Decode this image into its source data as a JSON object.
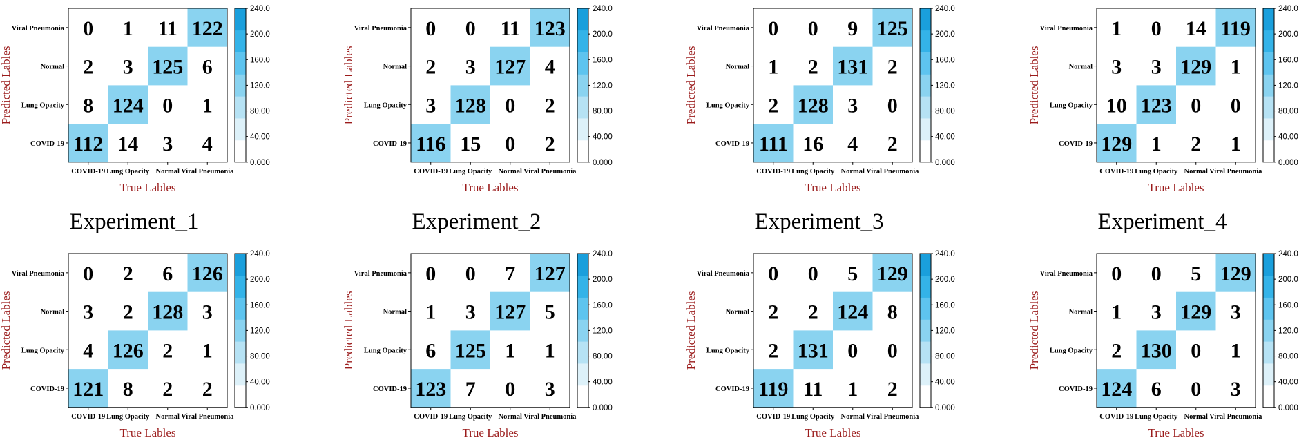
{
  "chart_data": {
    "type": "heatmap",
    "classes": [
      "COVID-19",
      "Lung Opacity",
      "Normal",
      "Viral Pneumonia"
    ],
    "y_tick_labels": [
      "Viral Pneumonia",
      "Normal",
      "Lung Opacity",
      "COVID-19"
    ],
    "xlabel": "True Lables",
    "ylabel": "Predicted Lables",
    "colorbar": {
      "range": [
        0,
        240
      ],
      "ticks": [
        "240.0",
        "200.0",
        "160.0",
        "120.0",
        "80.00",
        "40.00",
        "0.000"
      ],
      "bin_colors": [
        "#ffffff",
        "#ddf1f9",
        "#b6e2f4",
        "#8ad3f0",
        "#5ec4ef",
        "#34b3e8",
        "#1a9fdc"
      ]
    },
    "matrices": [
      {
        "title": "Experiment_1",
        "rows": [
          [
            0,
            1,
            11,
            122
          ],
          [
            2,
            3,
            125,
            6
          ],
          [
            8,
            124,
            0,
            1
          ],
          [
            112,
            14,
            3,
            4
          ]
        ]
      },
      {
        "title": "Experiment_2",
        "rows": [
          [
            0,
            0,
            11,
            123
          ],
          [
            2,
            3,
            127,
            4
          ],
          [
            3,
            128,
            0,
            2
          ],
          [
            116,
            15,
            0,
            2
          ]
        ]
      },
      {
        "title": "Experiment_3",
        "rows": [
          [
            0,
            0,
            9,
            125
          ],
          [
            1,
            2,
            131,
            2
          ],
          [
            2,
            128,
            3,
            0
          ],
          [
            111,
            16,
            4,
            2
          ]
        ]
      },
      {
        "title": "Experiment_4",
        "rows": [
          [
            1,
            0,
            14,
            119
          ],
          [
            3,
            3,
            129,
            1
          ],
          [
            10,
            123,
            0,
            0
          ],
          [
            129,
            1,
            2,
            1
          ]
        ]
      },
      {
        "title": "",
        "rows": [
          [
            0,
            2,
            6,
            126
          ],
          [
            3,
            2,
            128,
            3
          ],
          [
            4,
            126,
            2,
            1
          ],
          [
            121,
            8,
            2,
            2
          ]
        ]
      },
      {
        "title": "",
        "rows": [
          [
            0,
            0,
            7,
            127
          ],
          [
            1,
            3,
            127,
            5
          ],
          [
            6,
            125,
            1,
            1
          ],
          [
            123,
            7,
            0,
            3
          ]
        ]
      },
      {
        "title": "",
        "rows": [
          [
            0,
            0,
            5,
            129
          ],
          [
            2,
            2,
            124,
            8
          ],
          [
            2,
            131,
            0,
            0
          ],
          [
            119,
            11,
            1,
            2
          ]
        ]
      },
      {
        "title": "",
        "rows": [
          [
            0,
            0,
            5,
            129
          ],
          [
            1,
            3,
            129,
            3
          ],
          [
            2,
            130,
            0,
            1
          ],
          [
            124,
            6,
            0,
            3
          ]
        ]
      }
    ]
  }
}
